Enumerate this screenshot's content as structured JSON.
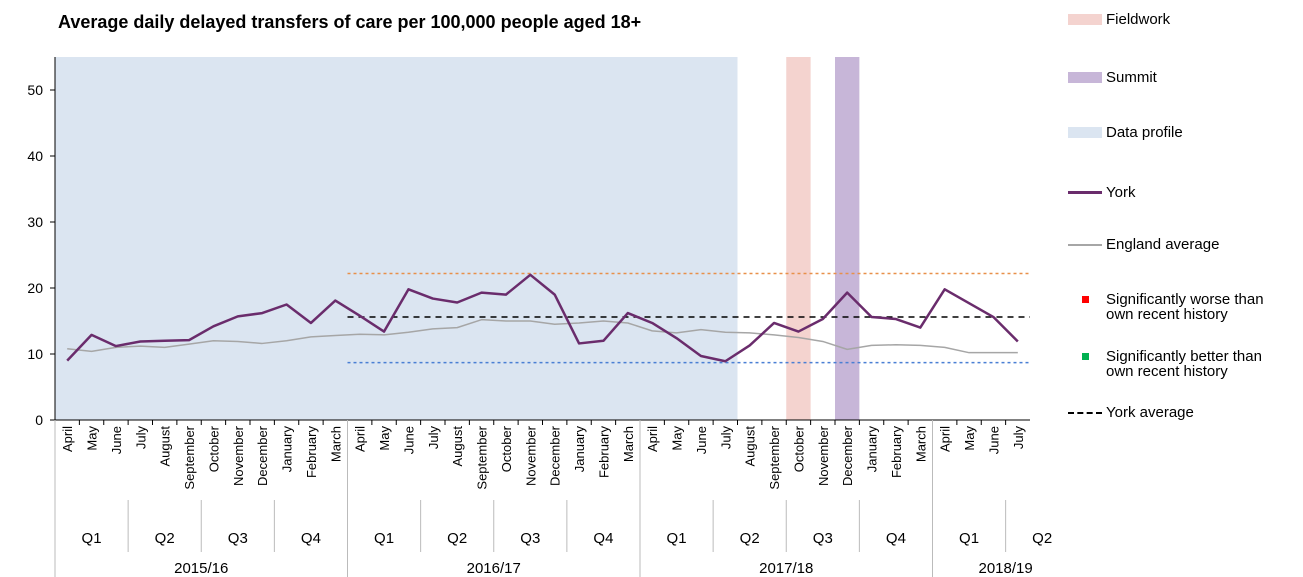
{
  "chart_data": {
    "type": "line",
    "title": "Average daily delayed transfers of care per 100,000 people aged 18+",
    "categories": [
      "April",
      "May",
      "June",
      "July",
      "August",
      "September",
      "October",
      "November",
      "December",
      "January",
      "February",
      "March",
      "April",
      "May",
      "June",
      "July",
      "August",
      "September",
      "October",
      "November",
      "December",
      "January",
      "February",
      "March",
      "April",
      "May",
      "June",
      "July",
      "August",
      "September",
      "October",
      "November",
      "December",
      "January",
      "February",
      "March",
      "April",
      "May",
      "June",
      "July"
    ],
    "quarters": [
      "Q1",
      "Q2",
      "Q3",
      "Q4",
      "Q1",
      "Q2",
      "Q3",
      "Q4",
      "Q1",
      "Q2",
      "Q3",
      "Q4",
      "Q1",
      "Q2"
    ],
    "years": [
      "2015/16",
      "2016/17",
      "2017/18",
      "2018/19"
    ],
    "series": [
      {
        "name": "York",
        "color": "#6a2c6c",
        "values": [
          9,
          12.9,
          11.2,
          11.9,
          12,
          12.1,
          14.2,
          15.7,
          16.2,
          17.5,
          14.7,
          18.1,
          15.8,
          13.4,
          19.8,
          18.4,
          17.8,
          19.3,
          19,
          22,
          19,
          11.6,
          12,
          16.2,
          14.7,
          12.4,
          9.7,
          8.9,
          11.3,
          14.7,
          13.4,
          15.3,
          19.3,
          15.6,
          15.3,
          14,
          19.8,
          17.7,
          15.6,
          11.9
        ]
      },
      {
        "name": "England average",
        "color": "#a6a6a6",
        "values": [
          10.8,
          10.4,
          11,
          11.2,
          11,
          11.5,
          12,
          11.9,
          11.6,
          12,
          12.6,
          12.8,
          13,
          12.9,
          13.3,
          13.8,
          14,
          15.2,
          15,
          15,
          14.5,
          14.7,
          15,
          14.7,
          13.5,
          13.2,
          13.7,
          13.3,
          13.2,
          12.9,
          12.5,
          11.9,
          10.7,
          11.3,
          11.4,
          11.3,
          11,
          10.2,
          10.2,
          10.2
        ]
      }
    ],
    "bands": [
      {
        "name": "Fieldwork",
        "color": "#f4d3cf",
        "from_index": 30,
        "to_index": 30
      },
      {
        "name": "Summit",
        "color": "#c7b6d8",
        "from_index": 32,
        "to_index": 32
      },
      {
        "name": "Data profile",
        "color": "#dbe5f1",
        "from_index": 0,
        "to_index": 27
      }
    ],
    "markers": [
      {
        "name": "Significantly worse than own recent history",
        "color": "#ff0000"
      },
      {
        "name": "Significantly better than own recent history",
        "color": "#00b050"
      }
    ],
    "reference_lines": [
      {
        "name": "York average",
        "value": 15.6,
        "color": "#000000",
        "dash": "6 5",
        "from_index": 12
      },
      {
        "value": 22.2,
        "color": "#e8904a",
        "dash": "3 3",
        "from_index": 12
      },
      {
        "value": 8.7,
        "color": "#4a7fd4",
        "dash": "3 3",
        "from_index": 12
      }
    ],
    "ylim": [
      0,
      55
    ],
    "yticks": [
      0,
      10,
      20,
      30,
      40,
      50
    ],
    "grid": false
  }
}
